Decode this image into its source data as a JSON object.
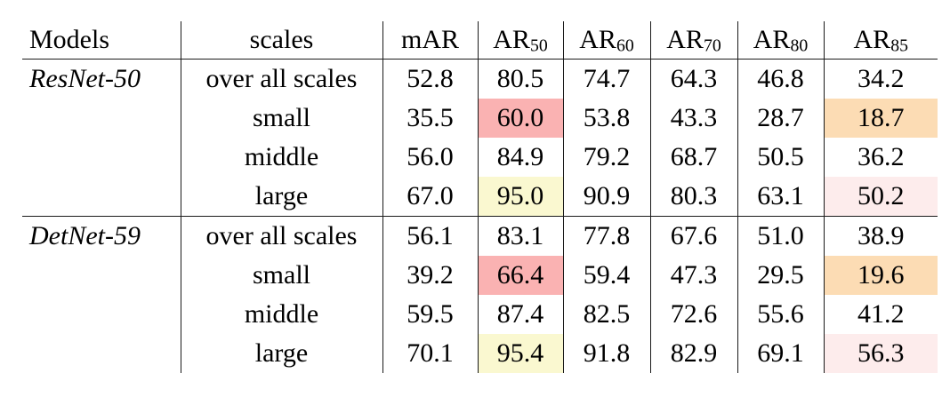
{
  "table": {
    "columns": [
      {
        "label": "Models"
      },
      {
        "label": "scales"
      },
      {
        "label": "mAR"
      },
      {
        "label": "AR",
        "sub": "50"
      },
      {
        "label": "AR",
        "sub": "60"
      },
      {
        "label": "AR",
        "sub": "70"
      },
      {
        "label": "AR",
        "sub": "80"
      },
      {
        "label": "AR",
        "sub": "85"
      }
    ],
    "groups": [
      {
        "model": "ResNet-50",
        "rows": [
          {
            "scale": "over all scales",
            "values": [
              "52.8",
              "80.5",
              "74.7",
              "64.3",
              "46.8",
              "34.2"
            ],
            "highlights": [
              null,
              null,
              null,
              null,
              null,
              null
            ]
          },
          {
            "scale": "small",
            "values": [
              "35.5",
              "60.0",
              "53.8",
              "43.3",
              "28.7",
              "18.7"
            ],
            "highlights": [
              null,
              "red",
              null,
              null,
              null,
              "orange"
            ]
          },
          {
            "scale": "middle",
            "values": [
              "56.0",
              "84.9",
              "79.2",
              "68.7",
              "50.5",
              "36.2"
            ],
            "highlights": [
              null,
              null,
              null,
              null,
              null,
              null
            ]
          },
          {
            "scale": "large",
            "values": [
              "67.0",
              "95.0",
              "90.9",
              "80.3",
              "63.1",
              "50.2"
            ],
            "highlights": [
              null,
              "yellow",
              null,
              null,
              null,
              "pink"
            ]
          }
        ]
      },
      {
        "model": "DetNet-59",
        "rows": [
          {
            "scale": "over all scales",
            "values": [
              "56.1",
              "83.1",
              "77.8",
              "67.6",
              "51.0",
              "38.9"
            ],
            "highlights": [
              null,
              null,
              null,
              null,
              null,
              null
            ]
          },
          {
            "scale": "small",
            "values": [
              "39.2",
              "66.4",
              "59.4",
              "47.3",
              "29.5",
              "19.6"
            ],
            "highlights": [
              null,
              "red",
              null,
              null,
              null,
              "orange"
            ]
          },
          {
            "scale": "middle",
            "values": [
              "59.5",
              "87.4",
              "82.5",
              "72.6",
              "55.6",
              "41.2"
            ],
            "highlights": [
              null,
              null,
              null,
              null,
              null,
              null
            ]
          },
          {
            "scale": "large",
            "values": [
              "70.1",
              "95.4",
              "91.8",
              "82.9",
              "69.1",
              "56.3"
            ],
            "highlights": [
              null,
              "yellow",
              null,
              null,
              null,
              "pink"
            ]
          }
        ]
      }
    ]
  },
  "colors": {
    "red": "#FAB2B2",
    "orange": "#FCDCB4",
    "yellow": "#FAF8D0",
    "pink": "#FDECEC",
    "rule": "#1A1A1A",
    "background": "#FFFFFF",
    "text": "#000000"
  }
}
